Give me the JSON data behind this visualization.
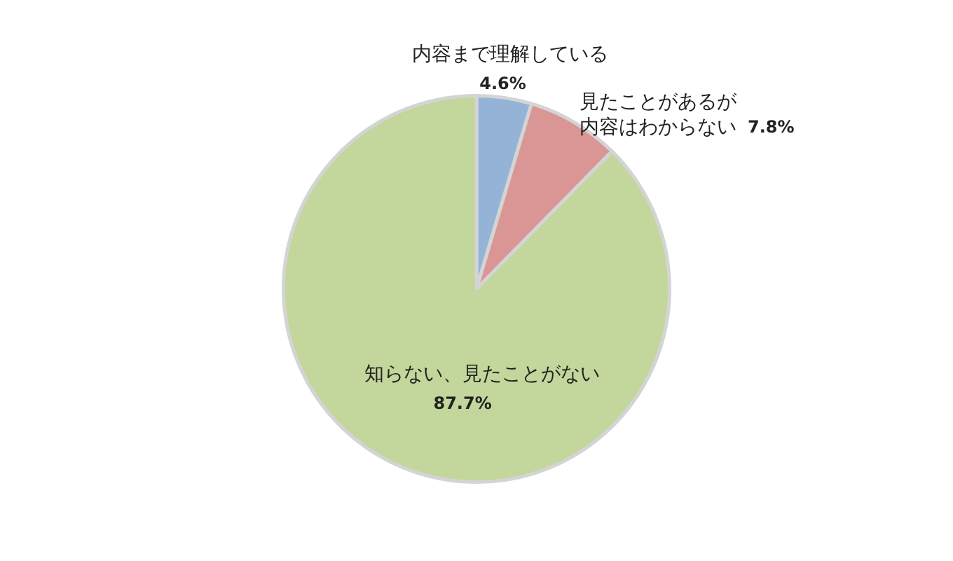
{
  "chart_data": {
    "type": "pie",
    "categories": [
      "内容まで理解している",
      "見たことがあるが内容はわからない",
      "知らない、見たことがない"
    ],
    "values": [
      4.6,
      7.8,
      87.7
    ],
    "colors": [
      "#95b3d7",
      "#d99694",
      "#c3d69b"
    ],
    "value_labels": [
      "4.6%",
      "7.8%",
      "87.7%"
    ],
    "legend": false
  }
}
